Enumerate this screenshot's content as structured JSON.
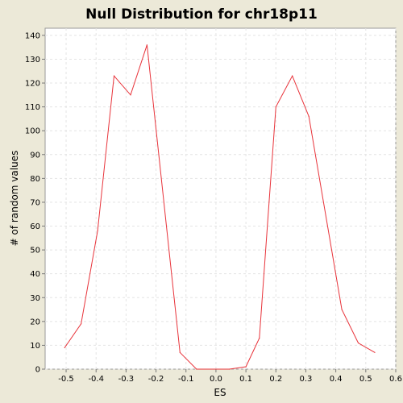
{
  "chart_data": {
    "type": "line",
    "title": "Null Distribution for chr18p11",
    "xlabel": "ES",
    "ylabel": "# of random values",
    "xlim": [
      -0.57,
      0.6
    ],
    "ylim": [
      0,
      143
    ],
    "x_ticks": [
      -0.5,
      -0.4,
      -0.3,
      -0.2,
      -0.1,
      0.0,
      0.1,
      0.2,
      0.3,
      0.4,
      0.5,
      0.6
    ],
    "x_tick_labels": [
      "-0.5",
      "-0.4",
      "-0.3",
      "-0.2",
      "-0.1",
      "0.0",
      "0.1",
      "0.2",
      "0.3",
      "0.4",
      "0.5",
      "0.6"
    ],
    "y_ticks": [
      0,
      10,
      20,
      30,
      40,
      50,
      60,
      70,
      80,
      90,
      100,
      110,
      120,
      130,
      140
    ],
    "y_tick_labels": [
      "0",
      "10",
      "20",
      "30",
      "40",
      "50",
      "60",
      "70",
      "80",
      "90",
      "100",
      "110",
      "120",
      "130",
      "140"
    ],
    "grid": true,
    "series": [
      {
        "x": [
          -0.505,
          -0.45,
          -0.395,
          -0.34,
          -0.285,
          -0.23,
          -0.12,
          -0.065,
          0.045,
          0.1,
          0.145,
          0.2,
          0.255,
          0.31,
          0.42,
          0.475,
          0.53
        ],
        "values": [
          9,
          19,
          58,
          123,
          115,
          136,
          7,
          0,
          0,
          1,
          13,
          110,
          123,
          106,
          25,
          11,
          7
        ],
        "color": "#E8333A"
      }
    ]
  }
}
